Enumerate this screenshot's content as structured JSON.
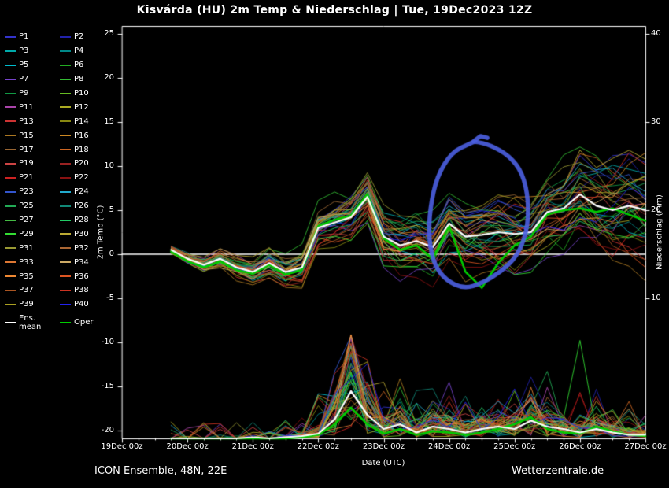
{
  "title": "Kisvárda  (HU)  2m Temp & Niederschlag | Tue, 19Dec2023 12Z",
  "footer": {
    "left": "ICON Ensemble, 48N, 22E",
    "right": "Wetterzentrale.de"
  },
  "legend": {
    "members": [
      {
        "label": "P1",
        "color": "#3333cc"
      },
      {
        "label": "P2",
        "color": "#2222aa"
      },
      {
        "label": "P3",
        "color": "#00aaaa"
      },
      {
        "label": "P4",
        "color": "#008888"
      },
      {
        "label": "P5",
        "color": "#00bbcc"
      },
      {
        "label": "P6",
        "color": "#22aa22"
      },
      {
        "label": "P7",
        "color": "#7744cc"
      },
      {
        "label": "P8",
        "color": "#33bb33"
      },
      {
        "label": "P9",
        "color": "#119944"
      },
      {
        "label": "P10",
        "color": "#66bb22"
      },
      {
        "label": "P11",
        "color": "#aa44aa"
      },
      {
        "label": "P12",
        "color": "#aaaa22"
      },
      {
        "label": "P13",
        "color": "#cc3333"
      },
      {
        "label": "P14",
        "color": "#888811"
      },
      {
        "label": "P15",
        "color": "#aa7722"
      },
      {
        "label": "P16",
        "color": "#cc8822"
      },
      {
        "label": "P17",
        "color": "#996633"
      },
      {
        "label": "P18",
        "color": "#cc6622"
      },
      {
        "label": "P19",
        "color": "#cc4444"
      },
      {
        "label": "P20",
        "color": "#992222"
      },
      {
        "label": "P21",
        "color": "#cc2222"
      },
      {
        "label": "P22",
        "color": "#881111"
      },
      {
        "label": "P23",
        "color": "#3355cc"
      },
      {
        "label": "P24",
        "color": "#22aacc"
      },
      {
        "label": "P25",
        "color": "#22aa55"
      },
      {
        "label": "P26",
        "color": "#118877"
      },
      {
        "label": "P27",
        "color": "#44bb44"
      },
      {
        "label": "P28",
        "color": "#22cc66"
      },
      {
        "label": "P29",
        "color": "#33dd33"
      },
      {
        "label": "P30",
        "color": "#bbaa33"
      },
      {
        "label": "P31",
        "color": "#999933"
      },
      {
        "label": "P32",
        "color": "#aa6633"
      },
      {
        "label": "P33",
        "color": "#dd7733"
      },
      {
        "label": "P34",
        "color": "#ccaa66"
      },
      {
        "label": "P35",
        "color": "#ee8833"
      },
      {
        "label": "P36",
        "color": "#dd5522"
      },
      {
        "label": "P37",
        "color": "#aa5522"
      },
      {
        "label": "P38",
        "color": "#cc3322"
      },
      {
        "label": "P39",
        "color": "#aaa022"
      },
      {
        "label": "P40",
        "color": "#2222ee"
      }
    ],
    "mean": {
      "label": "Ens. mean",
      "color": "#ffffff"
    },
    "oper": {
      "label": "Oper",
      "color": "#00cc00"
    }
  },
  "chart_data": {
    "type": "line",
    "title": "Kisvárda (HU) 2m Temp & Niederschlag | Tue, 19Dec2023 12Z",
    "xlabel": "Date (UTC)",
    "ylabel_left": "2m Temp (°C)",
    "ylabel_right": "Niederschlag (mm)",
    "x_ticks": [
      "19Dec 00z",
      "20Dec 00z",
      "21Dec 00z",
      "22Dec 00z",
      "23Dec 00z",
      "24Dec 00z",
      "25Dec 00z",
      "26Dec 00z",
      "27Dec 00z"
    ],
    "x_hours_total": 192,
    "ylim_left": [
      -20,
      25
    ],
    "y_ticks_left": [
      25,
      20,
      15,
      10,
      5,
      0,
      -5,
      -10,
      -15,
      -20
    ],
    "y_ticks_right": [
      40,
      30,
      20,
      10
    ],
    "hours_start": 18,
    "hours_step": 6,
    "series": {
      "temp_mean": [
        0.5,
        -0.5,
        -1.2,
        -0.5,
        -1.5,
        -2.0,
        -1.0,
        -2.0,
        -1.5,
        3.0,
        3.6,
        4.2,
        6.5,
        2.0,
        1.0,
        1.5,
        0.8,
        3.5,
        2.0,
        2.2,
        2.5,
        2.3,
        2.5,
        4.8,
        5.2,
        6.8,
        5.5,
        5.0,
        5.5,
        5.0
      ],
      "temp_oper": [
        0.3,
        -0.8,
        -1.5,
        -0.8,
        -1.8,
        -2.2,
        -1.2,
        -2.3,
        -1.8,
        3.2,
        3.9,
        4.4,
        6.8,
        1.8,
        0.5,
        1.0,
        -0.5,
        3.2,
        -2.0,
        -3.8,
        -1.0,
        1.0,
        2.0,
        4.5,
        5.0,
        5.2,
        4.8,
        5.2,
        4.5,
        3.8
      ],
      "precip_mean": [
        0,
        0,
        0,
        0,
        0,
        0.1,
        0,
        0.1,
        0.2,
        0.4,
        1.6,
        4.0,
        2.0,
        0.8,
        1.2,
        0.5,
        1.0,
        0.8,
        0.5,
        0.8,
        1.0,
        0.8,
        1.5,
        1.0,
        0.8,
        0.5,
        0.8,
        0.5,
        0.3,
        0.3
      ],
      "precip_oper": [
        0,
        0,
        0,
        0,
        0,
        0,
        0,
        0,
        0.1,
        0.3,
        1.2,
        2.6,
        1.2,
        0.4,
        0.8,
        0.3,
        0.6,
        0.5,
        0.3,
        0.5,
        0.8,
        1.2,
        1.8,
        0.8,
        0.5,
        0.4,
        1.0,
        0.6,
        0.3,
        0.2
      ]
    },
    "ensemble": {
      "count": 40,
      "seed": 20231219,
      "feature_spikes": [
        {
          "member": 40,
          "hour": 144,
          "mm": 4.2
        },
        {
          "member": 29,
          "hour": 168,
          "mm": 8.3
        }
      ]
    },
    "annotation": {
      "type": "hand-drawn-loop",
      "color": "rgba(75,95,225,0.9)",
      "points_h_t": [
        [
          128,
          12.6
        ],
        [
          121,
          11.6
        ],
        [
          115.5,
          8.8
        ],
        [
          113,
          5.2
        ],
        [
          112.5,
          1.8
        ],
        [
          114.5,
          -1.2
        ],
        [
          119,
          -3.0
        ],
        [
          125.5,
          -3.9
        ],
        [
          132,
          -3.3
        ],
        [
          139,
          -2.0
        ],
        [
          145,
          -0.2
        ],
        [
          148.6,
          2.6
        ],
        [
          149.2,
          6.0
        ],
        [
          147,
          9.2
        ],
        [
          142,
          11.2
        ],
        [
          135,
          12.4
        ],
        [
          129.5,
          12.8
        ]
      ],
      "tail_h_t": [
        [
          129,
          12.8
        ],
        [
          131.5,
          13.4
        ],
        [
          134,
          13.2
        ]
      ]
    }
  }
}
